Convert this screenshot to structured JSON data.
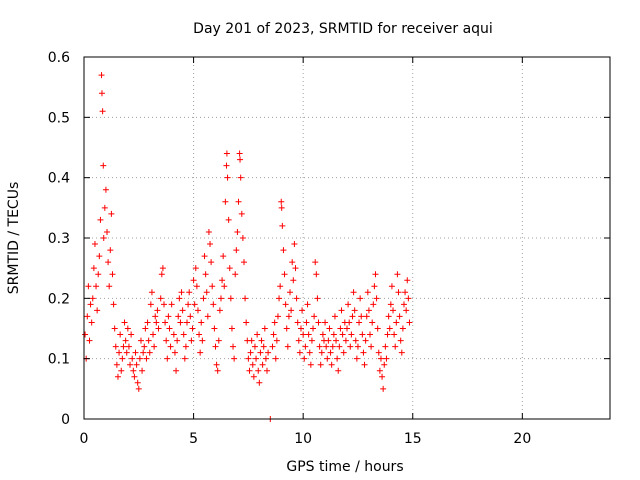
{
  "chart_data": {
    "type": "scatter",
    "title": "Day 201 of 2023, SRMTID for receiver aqui",
    "xlabel": "GPS time / hours",
    "ylabel": "SRMTID / TECUs",
    "xlim": [
      0,
      24
    ],
    "ylim": [
      0,
      0.6
    ],
    "xticks": [
      0,
      5,
      10,
      15,
      20
    ],
    "xtick_labels": [
      "0",
      "5",
      "10",
      "15",
      "20"
    ],
    "yticks": [
      0,
      0.1,
      0.2,
      0.3,
      0.4,
      0.5,
      0.6
    ],
    "ytick_labels": [
      "0",
      "0.1",
      "0.2",
      "0.3",
      "0.4",
      "0.5",
      "0.6"
    ],
    "grid": true,
    "marker": "+",
    "color": "#ff0000",
    "series": [
      {
        "name": "SRMTID",
        "points": [
          [
            0.05,
            0.14
          ],
          [
            0.1,
            0.1
          ],
          [
            0.15,
            0.17
          ],
          [
            0.2,
            0.22
          ],
          [
            0.25,
            0.13
          ],
          [
            0.3,
            0.19
          ],
          [
            0.35,
            0.16
          ],
          [
            0.4,
            0.2
          ],
          [
            0.45,
            0.25
          ],
          [
            0.5,
            0.29
          ],
          [
            0.55,
            0.22
          ],
          [
            0.6,
            0.18
          ],
          [
            0.65,
            0.24
          ],
          [
            0.7,
            0.27
          ],
          [
            0.75,
            0.33
          ],
          [
            0.8,
            0.57
          ],
          [
            0.82,
            0.54
          ],
          [
            0.85,
            0.51
          ],
          [
            0.88,
            0.42
          ],
          [
            0.9,
            0.3
          ],
          [
            0.95,
            0.35
          ],
          [
            1.0,
            0.38
          ],
          [
            1.05,
            0.31
          ],
          [
            1.1,
            0.26
          ],
          [
            1.15,
            0.22
          ],
          [
            1.2,
            0.28
          ],
          [
            1.25,
            0.34
          ],
          [
            1.3,
            0.24
          ],
          [
            1.35,
            0.19
          ],
          [
            1.4,
            0.15
          ],
          [
            1.45,
            0.12
          ],
          [
            1.5,
            0.09
          ],
          [
            1.55,
            0.07
          ],
          [
            1.6,
            0.11
          ],
          [
            1.65,
            0.14
          ],
          [
            1.7,
            0.08
          ],
          [
            1.75,
            0.1
          ],
          [
            1.8,
            0.12
          ],
          [
            1.85,
            0.16
          ],
          [
            1.9,
            0.13
          ],
          [
            1.95,
            0.11
          ],
          [
            2.0,
            0.15
          ],
          [
            2.05,
            0.12
          ],
          [
            2.1,
            0.09
          ],
          [
            2.15,
            0.14
          ],
          [
            2.2,
            0.1
          ],
          [
            2.25,
            0.08
          ],
          [
            2.3,
            0.07
          ],
          [
            2.35,
            0.11
          ],
          [
            2.4,
            0.09
          ],
          [
            2.45,
            0.06
          ],
          [
            2.5,
            0.05
          ],
          [
            2.55,
            0.1
          ],
          [
            2.6,
            0.13
          ],
          [
            2.65,
            0.08
          ],
          [
            2.7,
            0.11
          ],
          [
            2.75,
            0.12
          ],
          [
            2.8,
            0.15
          ],
          [
            2.85,
            0.1
          ],
          [
            2.9,
            0.16
          ],
          [
            2.95,
            0.13
          ],
          [
            3.0,
            0.11
          ],
          [
            3.05,
            0.19
          ],
          [
            3.1,
            0.21
          ],
          [
            3.15,
            0.14
          ],
          [
            3.2,
            0.12
          ],
          [
            3.25,
            0.17
          ],
          [
            3.3,
            0.16
          ],
          [
            3.35,
            0.18
          ],
          [
            3.4,
            0.15
          ],
          [
            3.5,
            0.2
          ],
          [
            3.55,
            0.24
          ],
          [
            3.6,
            0.25
          ],
          [
            3.65,
            0.19
          ],
          [
            3.7,
            0.16
          ],
          [
            3.75,
            0.13
          ],
          [
            3.8,
            0.1
          ],
          [
            3.85,
            0.17
          ],
          [
            3.9,
            0.15
          ],
          [
            3.95,
            0.12
          ],
          [
            4.0,
            0.19
          ],
          [
            4.1,
            0.14
          ],
          [
            4.15,
            0.11
          ],
          [
            4.2,
            0.08
          ],
          [
            4.25,
            0.13
          ],
          [
            4.3,
            0.17
          ],
          [
            4.35,
            0.2
          ],
          [
            4.4,
            0.16
          ],
          [
            4.45,
            0.21
          ],
          [
            4.5,
            0.18
          ],
          [
            4.55,
            0.14
          ],
          [
            4.6,
            0.1
          ],
          [
            4.65,
            0.12
          ],
          [
            4.7,
            0.16
          ],
          [
            4.75,
            0.19
          ],
          [
            4.8,
            0.21
          ],
          [
            4.85,
            0.17
          ],
          [
            4.9,
            0.13
          ],
          [
            4.95,
            0.15
          ],
          [
            5.0,
            0.23
          ],
          [
            5.05,
            0.19
          ],
          [
            5.1,
            0.25
          ],
          [
            5.15,
            0.22
          ],
          [
            5.2,
            0.18
          ],
          [
            5.25,
            0.14
          ],
          [
            5.3,
            0.11
          ],
          [
            5.35,
            0.16
          ],
          [
            5.4,
            0.13
          ],
          [
            5.45,
            0.2
          ],
          [
            5.5,
            0.27
          ],
          [
            5.55,
            0.24
          ],
          [
            5.6,
            0.21
          ],
          [
            5.65,
            0.17
          ],
          [
            5.7,
            0.31
          ],
          [
            5.75,
            0.29
          ],
          [
            5.8,
            0.26
          ],
          [
            5.85,
            0.22
          ],
          [
            5.9,
            0.19
          ],
          [
            5.95,
            0.15
          ],
          [
            6.0,
            0.12
          ],
          [
            6.05,
            0.09
          ],
          [
            6.1,
            0.08
          ],
          [
            6.15,
            0.13
          ],
          [
            6.2,
            0.18
          ],
          [
            6.25,
            0.2
          ],
          [
            6.3,
            0.23
          ],
          [
            6.35,
            0.27
          ],
          [
            6.4,
            0.22
          ],
          [
            6.45,
            0.36
          ],
          [
            6.5,
            0.42
          ],
          [
            6.52,
            0.44
          ],
          [
            6.55,
            0.4
          ],
          [
            6.6,
            0.33
          ],
          [
            6.65,
            0.25
          ],
          [
            6.7,
            0.2
          ],
          [
            6.75,
            0.15
          ],
          [
            6.8,
            0.12
          ],
          [
            6.85,
            0.1
          ],
          [
            6.9,
            0.24
          ],
          [
            6.95,
            0.28
          ],
          [
            7.0,
            0.31
          ],
          [
            7.05,
            0.36
          ],
          [
            7.1,
            0.44
          ],
          [
            7.12,
            0.43
          ],
          [
            7.15,
            0.4
          ],
          [
            7.2,
            0.34
          ],
          [
            7.25,
            0.3
          ],
          [
            7.3,
            0.26
          ],
          [
            7.35,
            0.2
          ],
          [
            7.4,
            0.16
          ],
          [
            7.45,
            0.13
          ],
          [
            7.5,
            0.1
          ],
          [
            7.55,
            0.08
          ],
          [
            7.6,
            0.11
          ],
          [
            7.65,
            0.13
          ],
          [
            7.7,
            0.09
          ],
          [
            7.75,
            0.07
          ],
          [
            7.8,
            0.12
          ],
          [
            7.85,
            0.1
          ],
          [
            7.9,
            0.14
          ],
          [
            7.95,
            0.08
          ],
          [
            8.0,
            0.06
          ],
          [
            8.05,
            0.11
          ],
          [
            8.1,
            0.13
          ],
          [
            8.15,
            0.09
          ],
          [
            8.2,
            0.12
          ],
          [
            8.25,
            0.15
          ],
          [
            8.3,
            0.1
          ],
          [
            8.35,
            0.08
          ],
          [
            8.4,
            0.11
          ],
          [
            8.5,
            0.0
          ],
          [
            8.6,
            0.12
          ],
          [
            8.65,
            0.14
          ],
          [
            8.7,
            0.16
          ],
          [
            8.75,
            0.1
          ],
          [
            8.8,
            0.13
          ],
          [
            8.85,
            0.17
          ],
          [
            8.9,
            0.2
          ],
          [
            8.95,
            0.22
          ],
          [
            9.0,
            0.36
          ],
          [
            9.02,
            0.35
          ],
          [
            9.05,
            0.32
          ],
          [
            9.1,
            0.28
          ],
          [
            9.15,
            0.24
          ],
          [
            9.2,
            0.19
          ],
          [
            9.25,
            0.15
          ],
          [
            9.3,
            0.12
          ],
          [
            9.35,
            0.17
          ],
          [
            9.4,
            0.21
          ],
          [
            9.45,
            0.18
          ],
          [
            9.5,
            0.26
          ],
          [
            9.55,
            0.23
          ],
          [
            9.6,
            0.29
          ],
          [
            9.65,
            0.25
          ],
          [
            9.7,
            0.2
          ],
          [
            9.75,
            0.16
          ],
          [
            9.8,
            0.13
          ],
          [
            9.85,
            0.11
          ],
          [
            9.9,
            0.15
          ],
          [
            9.95,
            0.18
          ],
          [
            10.0,
            0.14
          ],
          [
            10.05,
            0.1
          ],
          [
            10.1,
            0.12
          ],
          [
            10.15,
            0.16
          ],
          [
            10.2,
            0.19
          ],
          [
            10.25,
            0.14
          ],
          [
            10.3,
            0.11
          ],
          [
            10.35,
            0.09
          ],
          [
            10.4,
            0.13
          ],
          [
            10.45,
            0.15
          ],
          [
            10.5,
            0.17
          ],
          [
            10.55,
            0.26
          ],
          [
            10.6,
            0.24
          ],
          [
            10.65,
            0.2
          ],
          [
            10.7,
            0.16
          ],
          [
            10.75,
            0.12
          ],
          [
            10.8,
            0.09
          ],
          [
            10.85,
            0.11
          ],
          [
            10.9,
            0.14
          ],
          [
            10.95,
            0.13
          ],
          [
            11.0,
            0.16
          ],
          [
            11.05,
            0.12
          ],
          [
            11.1,
            0.1
          ],
          [
            11.15,
            0.13
          ],
          [
            11.2,
            0.15
          ],
          [
            11.25,
            0.11
          ],
          [
            11.3,
            0.09
          ],
          [
            11.35,
            0.12
          ],
          [
            11.4,
            0.14
          ],
          [
            11.45,
            0.17
          ],
          [
            11.5,
            0.13
          ],
          [
            11.55,
            0.1
          ],
          [
            11.6,
            0.08
          ],
          [
            11.65,
            0.12
          ],
          [
            11.7,
            0.15
          ],
          [
            11.75,
            0.18
          ],
          [
            11.8,
            0.14
          ],
          [
            11.85,
            0.11
          ],
          [
            11.9,
            0.16
          ],
          [
            11.95,
            0.13
          ],
          [
            12.0,
            0.15
          ],
          [
            12.05,
            0.19
          ],
          [
            12.1,
            0.16
          ],
          [
            12.15,
            0.12
          ],
          [
            12.2,
            0.14
          ],
          [
            12.25,
            0.17
          ],
          [
            12.3,
            0.21
          ],
          [
            12.35,
            0.18
          ],
          [
            12.4,
            0.13
          ],
          [
            12.45,
            0.1
          ],
          [
            12.5,
            0.12
          ],
          [
            12.55,
            0.16
          ],
          [
            12.6,
            0.2
          ],
          [
            12.65,
            0.17
          ],
          [
            12.7,
            0.14
          ],
          [
            12.75,
            0.11
          ],
          [
            12.8,
            0.09
          ],
          [
            12.85,
            0.13
          ],
          [
            12.9,
            0.17
          ],
          [
            12.95,
            0.21
          ],
          [
            13.0,
            0.18
          ],
          [
            13.05,
            0.14
          ],
          [
            13.1,
            0.12
          ],
          [
            13.15,
            0.16
          ],
          [
            13.2,
            0.19
          ],
          [
            13.25,
            0.22
          ],
          [
            13.3,
            0.24
          ],
          [
            13.35,
            0.2
          ],
          [
            13.4,
            0.15
          ],
          [
            13.45,
            0.11
          ],
          [
            13.5,
            0.08
          ],
          [
            13.55,
            0.1
          ],
          [
            13.6,
            0.07
          ],
          [
            13.65,
            0.05
          ],
          [
            13.7,
            0.09
          ],
          [
            13.75,
            0.12
          ],
          [
            13.8,
            0.1
          ],
          [
            13.85,
            0.14
          ],
          [
            13.9,
            0.17
          ],
          [
            13.95,
            0.15
          ],
          [
            14.0,
            0.19
          ],
          [
            14.05,
            0.22
          ],
          [
            14.1,
            0.18
          ],
          [
            14.15,
            0.14
          ],
          [
            14.2,
            0.12
          ],
          [
            14.25,
            0.16
          ],
          [
            14.3,
            0.24
          ],
          [
            14.35,
            0.21
          ],
          [
            14.4,
            0.17
          ],
          [
            14.45,
            0.13
          ],
          [
            14.5,
            0.11
          ],
          [
            14.55,
            0.15
          ],
          [
            14.6,
            0.19
          ],
          [
            14.65,
            0.21
          ],
          [
            14.7,
            0.18
          ],
          [
            14.75,
            0.23
          ],
          [
            14.8,
            0.2
          ],
          [
            14.85,
            0.16
          ]
        ]
      }
    ]
  }
}
